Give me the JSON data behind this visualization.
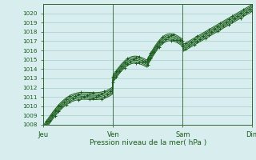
{
  "title": "Pression niveau de la mer( hPa )",
  "ylim": [
    1008,
    1021
  ],
  "yticks": [
    1008,
    1009,
    1010,
    1011,
    1012,
    1013,
    1014,
    1015,
    1016,
    1017,
    1018,
    1019,
    1020
  ],
  "xtick_labels": [
    "Jeu",
    "Ven",
    "Sam",
    "Dim"
  ],
  "xtick_positions": [
    0,
    96,
    192,
    288
  ],
  "total_points": 289,
  "bg_color": "#d8eeee",
  "grid_color": "#aacccc",
  "line_color": "#1a5c1a",
  "spine_color": "#336633",
  "n_series": 6,
  "offsets": [
    -0.3,
    -0.15,
    0.0,
    0.15,
    0.3,
    0.45
  ]
}
